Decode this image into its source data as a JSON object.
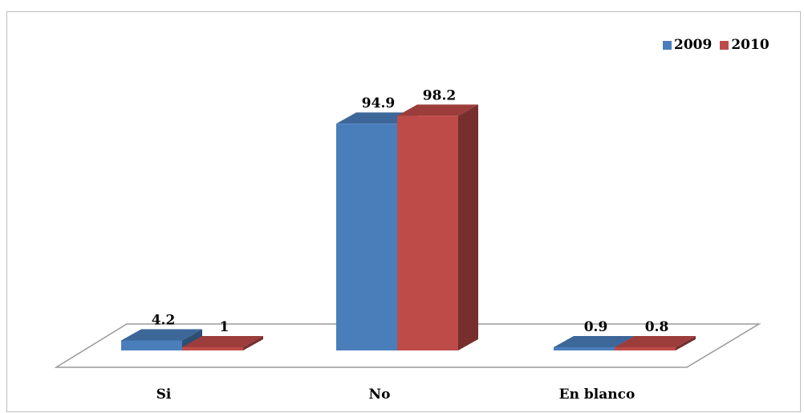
{
  "chart_data": {
    "type": "bar",
    "categories": [
      "Si",
      "No",
      "En blanco"
    ],
    "series": [
      {
        "name": "2009",
        "values": [
          4.2,
          94.9,
          0.9
        ],
        "color": "#4a7ebb"
      },
      {
        "name": "2010",
        "values": [
          1,
          98.2,
          0.8
        ],
        "color": "#be4b48"
      }
    ],
    "data_labels": [
      [
        "4.2",
        "94.9",
        "0.9"
      ],
      [
        "1",
        "98.2",
        "0.8"
      ]
    ],
    "legend_position": "top-right",
    "grid": false,
    "three_d": true,
    "ylim": [
      0,
      100
    ]
  }
}
